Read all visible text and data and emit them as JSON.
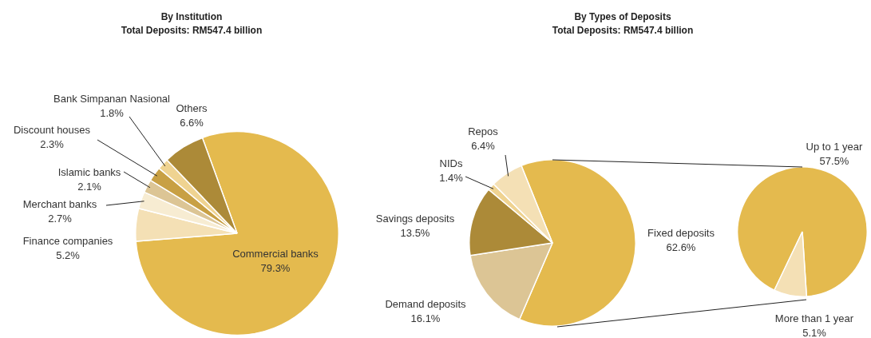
{
  "chart_data": [
    {
      "type": "pie",
      "title": "By Institution",
      "subtitle": "Total Deposits: RM547.4 billion",
      "categories": [
        "Commercial banks",
        "Finance companies",
        "Merchant banks",
        "Islamic banks",
        "Discount houses",
        "Bank Simpanan Nasional",
        "Others"
      ],
      "values": [
        79.3,
        5.2,
        2.7,
        2.1,
        2.3,
        1.8,
        6.6
      ],
      "value_labels": [
        "79.3%",
        "5.2%",
        "2.7%",
        "2.1%",
        "2.3%",
        "1.8%",
        "6.6%"
      ],
      "colors": [
        "#e4ba4e",
        "#f4e0b5",
        "#f7ecd2",
        "#dcc595",
        "#c8a044",
        "#efd391",
        "#ac8a38"
      ]
    },
    {
      "type": "pie",
      "title": "By Types of Deposits",
      "subtitle": "Total Deposits: RM547.4 billion",
      "categories": [
        "Fixed deposits",
        "Demand deposits",
        "Savings deposits",
        "NIDs",
        "Repos"
      ],
      "values": [
        62.6,
        16.1,
        13.5,
        1.4,
        6.4
      ],
      "value_labels": [
        "62.6%",
        "16.1%",
        "13.5%",
        "1.4%",
        "6.4%"
      ],
      "colors": [
        "#e4ba4e",
        "#dcc595",
        "#ac8a38",
        "#efd391",
        "#f4e0b5"
      ]
    },
    {
      "type": "pie",
      "categories": [
        "Up to 1 year",
        "More than 1 year"
      ],
      "values": [
        57.5,
        5.1
      ],
      "value_labels": [
        "57.5%",
        "5.1%"
      ],
      "colors": [
        "#e4ba4e",
        "#f4e0b5"
      ]
    }
  ]
}
